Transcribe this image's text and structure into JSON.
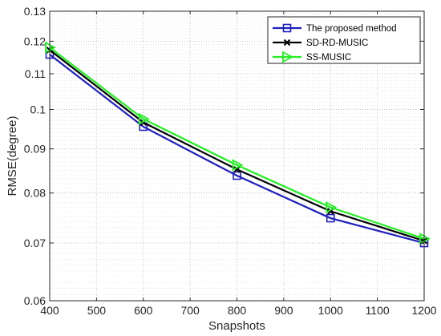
{
  "chart_data": {
    "type": "line",
    "title": "",
    "xlabel": "Snapshots",
    "ylabel": "RMSE(degree)",
    "y_scale": "log",
    "xlim": [
      400,
      1200
    ],
    "ylim": [
      0.06,
      0.13
    ],
    "x_ticks": [
      "400",
      "500",
      "600",
      "700",
      "800",
      "900",
      "1000",
      "1100",
      "1200"
    ],
    "y_ticks": [
      "0.06",
      "0.07",
      "0.08",
      "0.09",
      "0.1",
      "0.11",
      "0.12",
      "0.13"
    ],
    "grid": true,
    "minor_grid": true,
    "legend_position": "top-right",
    "x": [
      400,
      600,
      800,
      1000,
      1200
    ],
    "series": [
      {
        "name": "The proposed method",
        "color": "#1f1fbf",
        "marker": "square",
        "values": [
          0.1158,
          0.0955,
          0.0838,
          0.0748,
          0.07
        ]
      },
      {
        "name": "SD-RD-MUSIC",
        "color": "#000000",
        "marker": "x",
        "values": [
          0.1172,
          0.0966,
          0.0852,
          0.0762,
          0.0704
        ]
      },
      {
        "name": "SS-MUSIC",
        "color": "#22ee22",
        "marker": "triangle-right",
        "values": [
          0.118,
          0.0975,
          0.0862,
          0.077,
          0.0708
        ]
      }
    ]
  }
}
